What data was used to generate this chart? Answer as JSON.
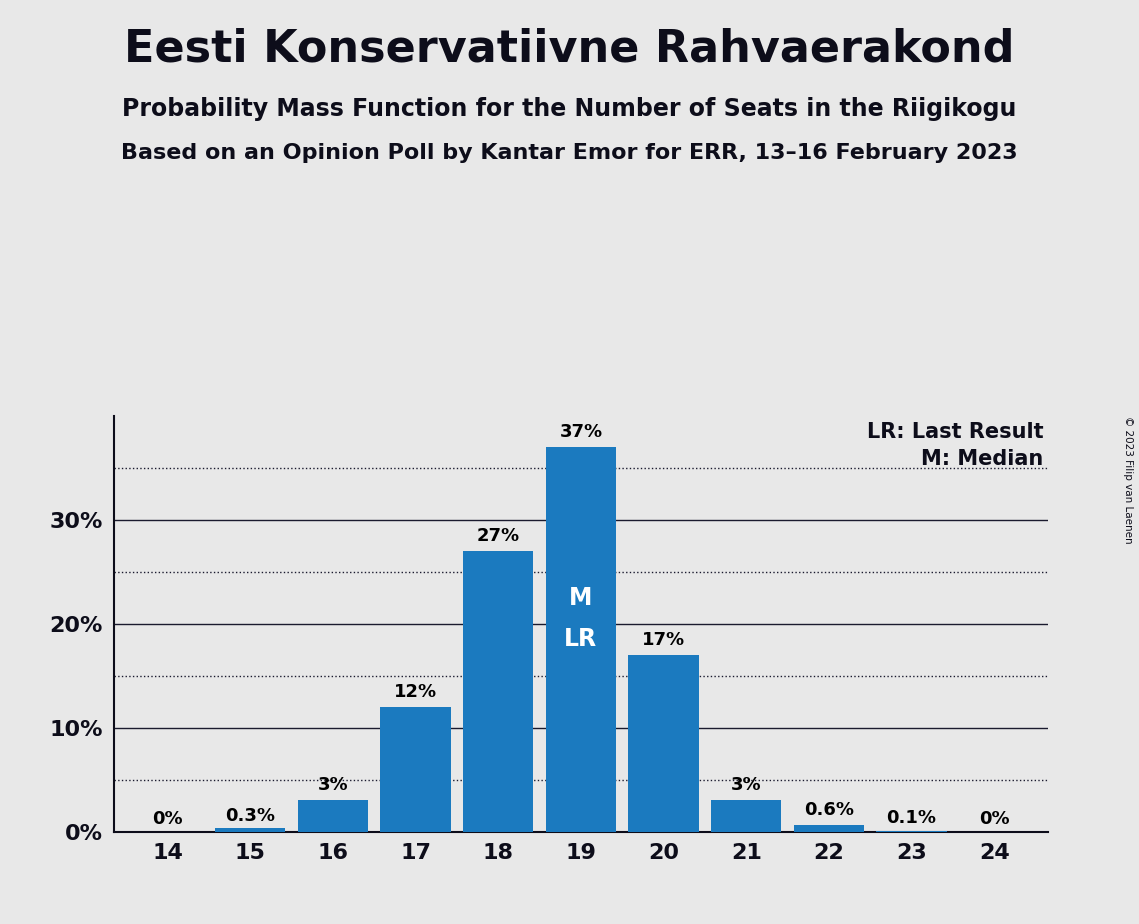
{
  "title": "Eesti Konservatiivne Rahvaerakond",
  "subtitle1": "Probability Mass Function for the Number of Seats in the Riigikogu",
  "subtitle2": "Based on an Opinion Poll by Kantar Emor for ERR, 13–16 February 2023",
  "copyright": "© 2023 Filip van Laenen",
  "seats": [
    14,
    15,
    16,
    17,
    18,
    19,
    20,
    21,
    22,
    23,
    24
  ],
  "probabilities": [
    0.0,
    0.3,
    3.0,
    12.0,
    27.0,
    37.0,
    17.0,
    3.0,
    0.6,
    0.1,
    0.0
  ],
  "labels": [
    "0%",
    "0.3%",
    "3%",
    "12%",
    "27%",
    "37%",
    "17%",
    "3%",
    "0.6%",
    "0.1%",
    "0%"
  ],
  "bar_color": "#1b7abf",
  "median": 19,
  "last_result": 19,
  "background_color": "#e8e8e8",
  "legend_lr": "LR: Last Result",
  "legend_m": "M: Median",
  "solid_lines": [
    10,
    20,
    30
  ],
  "dotted_lines": [
    5,
    15,
    25,
    35
  ],
  "ytick_positions": [
    0,
    10,
    20,
    30
  ],
  "ytick_labels": [
    "0%",
    "10%",
    "20%",
    "30%"
  ],
  "ylim_max": 40,
  "bar_width": 0.85
}
